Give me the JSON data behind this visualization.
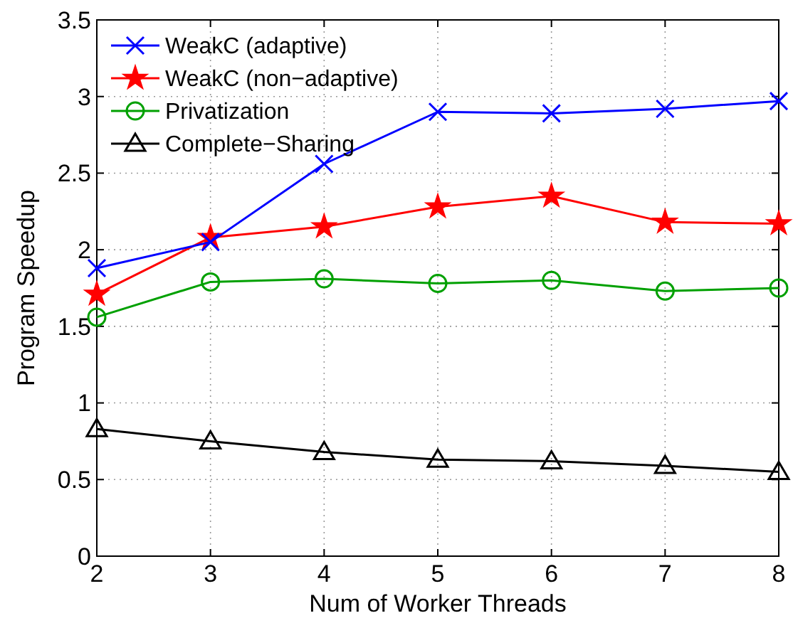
{
  "chart_data": {
    "type": "line",
    "xlabel": "Num of Worker Threads",
    "ylabel": "Program Speedup",
    "x": [
      2,
      3,
      4,
      5,
      6,
      7,
      8
    ],
    "series": [
      {
        "name": "WeakC (adaptive)",
        "color": "#0000ff",
        "marker": "cross",
        "values": [
          1.88,
          2.05,
          2.56,
          2.9,
          2.89,
          2.92,
          2.97
        ]
      },
      {
        "name": "WeakC (non−adaptive)",
        "color": "#ff0000",
        "marker": "star",
        "values": [
          1.71,
          2.08,
          2.15,
          2.28,
          2.35,
          2.18,
          2.17
        ]
      },
      {
        "name": "Privatization",
        "color": "#00a000",
        "marker": "circle",
        "values": [
          1.56,
          1.79,
          1.81,
          1.78,
          1.8,
          1.73,
          1.75
        ]
      },
      {
        "name": "Complete−Sharing",
        "color": "#000000",
        "marker": "triangle",
        "values": [
          0.83,
          0.75,
          0.68,
          0.63,
          0.62,
          0.59,
          0.55
        ]
      }
    ],
    "xlim": [
      2,
      8
    ],
    "xticks": [
      2,
      3,
      4,
      5,
      6,
      7,
      8
    ],
    "ylim": [
      0,
      3.5
    ],
    "yticks": [
      0,
      0.5,
      1,
      1.5,
      2,
      2.5,
      3,
      3.5
    ],
    "grid": true,
    "legend": "top left",
    "line_style": "solid"
  }
}
